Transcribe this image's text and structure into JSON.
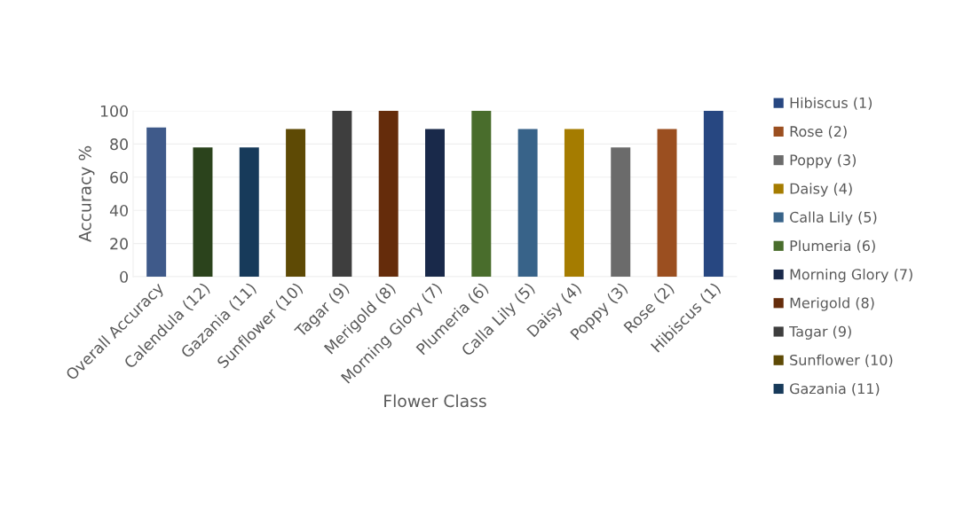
{
  "chart_data": {
    "type": "bar",
    "xlabel": "Flower Class",
    "ylabel": "Accuracy %",
    "categories": [
      "Overall Accuracy",
      "Calendula (12)",
      "Gazania (11)",
      "Sunflower (10)",
      "Tagar (9)",
      "Merigold (8)",
      "Morning Glory (7)",
      "Plumeria (6)",
      "Calla Lily (5)",
      "Daisy (4)",
      "Poppy (3)",
      "Rose (2)",
      "Hibiscus (1)"
    ],
    "series": [
      {
        "name": "Hibiscus (1)",
        "color": "#274781",
        "values": [
          null,
          null,
          null,
          null,
          null,
          null,
          null,
          null,
          null,
          null,
          null,
          null,
          100
        ]
      },
      {
        "name": "Rose (2)",
        "color": "#9b4f20",
        "values": [
          null,
          null,
          null,
          null,
          null,
          null,
          null,
          null,
          null,
          null,
          null,
          89,
          null
        ]
      },
      {
        "name": "Poppy (3)",
        "color": "#6b6b6b",
        "values": [
          null,
          null,
          null,
          null,
          null,
          null,
          null,
          null,
          null,
          null,
          78,
          null,
          null
        ]
      },
      {
        "name": "Daisy (4)",
        "color": "#a57c00",
        "values": [
          null,
          null,
          null,
          null,
          null,
          null,
          null,
          null,
          null,
          89,
          null,
          null,
          null
        ]
      },
      {
        "name": "Calla Lily (5)",
        "color": "#386389",
        "values": [
          null,
          null,
          null,
          null,
          null,
          null,
          null,
          null,
          89,
          null,
          null,
          null,
          null
        ]
      },
      {
        "name": "Plumeria (6)",
        "color": "#496d2c",
        "values": [
          null,
          null,
          null,
          null,
          null,
          null,
          null,
          100,
          null,
          null,
          null,
          null,
          null
        ]
      },
      {
        "name": "Morning Glory (7)",
        "color": "#19294a",
        "values": [
          null,
          null,
          null,
          null,
          null,
          null,
          89,
          null,
          null,
          null,
          null,
          null,
          null
        ]
      },
      {
        "name": "Merigold (8)",
        "color": "#652c0b",
        "values": [
          null,
          null,
          null,
          null,
          null,
          100,
          null,
          null,
          null,
          null,
          null,
          null,
          null
        ]
      },
      {
        "name": "Tagar (9)",
        "color": "#3e3e3e",
        "values": [
          null,
          null,
          null,
          null,
          100,
          null,
          null,
          null,
          null,
          null,
          null,
          null,
          null
        ]
      },
      {
        "name": "Sunflower (10)",
        "color": "#5e4a05",
        "values": [
          null,
          null,
          null,
          89,
          null,
          null,
          null,
          null,
          null,
          null,
          null,
          null,
          null
        ]
      },
      {
        "name": "Gazania (11)",
        "color": "#173a5a",
        "values": [
          null,
          null,
          78,
          null,
          null,
          null,
          null,
          null,
          null,
          null,
          null,
          null,
          null
        ]
      },
      {
        "color": "#2b431c",
        "values": [
          null,
          78,
          null,
          null,
          null,
          null,
          null,
          null,
          null,
          null,
          null,
          null,
          null
        ]
      },
      {
        "color": "#3f5a8a",
        "values": [
          90,
          null,
          null,
          null,
          null,
          null,
          null,
          null,
          null,
          null,
          null,
          null,
          null
        ]
      }
    ],
    "ylim": [
      0,
      100
    ],
    "yticks": [
      0,
      20,
      40,
      60,
      80,
      100
    ],
    "grid": "y",
    "legend": "right"
  }
}
